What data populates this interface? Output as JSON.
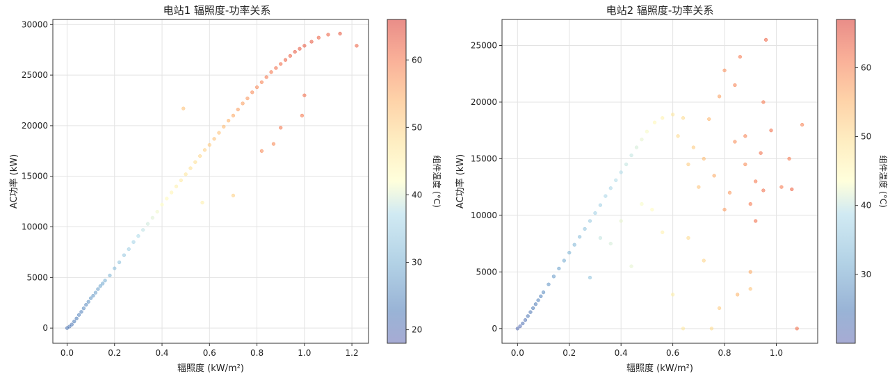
{
  "chart_data": [
    {
      "type": "scatter",
      "title": "电站1 辐照度-功率关系",
      "xlabel": "辐照度 (kW/m²)",
      "ylabel": "AC功率 (kW)",
      "xlim": [
        -0.06,
        1.27
      ],
      "ylim": [
        -1500,
        30500
      ],
      "xticks": [
        0.0,
        0.2,
        0.4,
        0.6,
        0.8,
        1.0,
        1.2
      ],
      "xtick_labels": [
        "0.0",
        "0.2",
        "0.4",
        "0.6",
        "0.8",
        "1.0",
        "1.2"
      ],
      "yticks": [
        0,
        5000,
        10000,
        15000,
        20000,
        25000,
        30000
      ],
      "ytick_labels": [
        "0",
        "5000",
        "10000",
        "15000",
        "20000",
        "25000",
        "30000"
      ],
      "grid": true,
      "colorbar": {
        "label": "组件温度 (°C)",
        "range": [
          18,
          66
        ],
        "ticks": [
          20,
          30,
          40,
          50,
          60
        ],
        "tick_labels": [
          "20",
          "30",
          "40",
          "50",
          "60"
        ],
        "colormap": "RdYlBu_r"
      },
      "points": [
        {
          "x": 0.0,
          "y": 0,
          "t": 22
        },
        {
          "x": 0.01,
          "y": 150,
          "t": 22
        },
        {
          "x": 0.02,
          "y": 350,
          "t": 22
        },
        {
          "x": 0.03,
          "y": 650,
          "t": 23
        },
        {
          "x": 0.04,
          "y": 950,
          "t": 23
        },
        {
          "x": 0.05,
          "y": 1300,
          "t": 24
        },
        {
          "x": 0.06,
          "y": 1600,
          "t": 24
        },
        {
          "x": 0.07,
          "y": 1950,
          "t": 25
        },
        {
          "x": 0.08,
          "y": 2300,
          "t": 25
        },
        {
          "x": 0.09,
          "y": 2600,
          "t": 26
        },
        {
          "x": 0.1,
          "y": 2950,
          "t": 27
        },
        {
          "x": 0.11,
          "y": 3200,
          "t": 27
        },
        {
          "x": 0.12,
          "y": 3500,
          "t": 28
        },
        {
          "x": 0.13,
          "y": 3850,
          "t": 28
        },
        {
          "x": 0.14,
          "y": 4150,
          "t": 29
        },
        {
          "x": 0.15,
          "y": 4400,
          "t": 29
        },
        {
          "x": 0.16,
          "y": 4700,
          "t": 30
        },
        {
          "x": 0.18,
          "y": 5200,
          "t": 31
        },
        {
          "x": 0.2,
          "y": 5900,
          "t": 32
        },
        {
          "x": 0.22,
          "y": 6500,
          "t": 33
        },
        {
          "x": 0.24,
          "y": 7200,
          "t": 34
        },
        {
          "x": 0.26,
          "y": 7800,
          "t": 35
        },
        {
          "x": 0.28,
          "y": 8500,
          "t": 36
        },
        {
          "x": 0.3,
          "y": 9100,
          "t": 37
        },
        {
          "x": 0.32,
          "y": 9700,
          "t": 38
        },
        {
          "x": 0.34,
          "y": 10300,
          "t": 39
        },
        {
          "x": 0.36,
          "y": 10900,
          "t": 40
        },
        {
          "x": 0.38,
          "y": 11500,
          "t": 41
        },
        {
          "x": 0.4,
          "y": 12200,
          "t": 42
        },
        {
          "x": 0.42,
          "y": 12800,
          "t": 43
        },
        {
          "x": 0.44,
          "y": 13400,
          "t": 44
        },
        {
          "x": 0.46,
          "y": 14000,
          "t": 45
        },
        {
          "x": 0.48,
          "y": 14600,
          "t": 46
        },
        {
          "x": 0.5,
          "y": 15200,
          "t": 47
        },
        {
          "x": 0.52,
          "y": 15800,
          "t": 48
        },
        {
          "x": 0.54,
          "y": 16400,
          "t": 48
        },
        {
          "x": 0.56,
          "y": 17000,
          "t": 49
        },
        {
          "x": 0.58,
          "y": 17600,
          "t": 50
        },
        {
          "x": 0.6,
          "y": 18100,
          "t": 51
        },
        {
          "x": 0.62,
          "y": 18700,
          "t": 52
        },
        {
          "x": 0.64,
          "y": 19300,
          "t": 52
        },
        {
          "x": 0.66,
          "y": 19900,
          "t": 53
        },
        {
          "x": 0.68,
          "y": 20500,
          "t": 54
        },
        {
          "x": 0.7,
          "y": 21000,
          "t": 55
        },
        {
          "x": 0.72,
          "y": 21600,
          "t": 56
        },
        {
          "x": 0.74,
          "y": 22200,
          "t": 56
        },
        {
          "x": 0.76,
          "y": 22700,
          "t": 57
        },
        {
          "x": 0.78,
          "y": 23300,
          "t": 58
        },
        {
          "x": 0.8,
          "y": 23800,
          "t": 58
        },
        {
          "x": 0.82,
          "y": 24300,
          "t": 59
        },
        {
          "x": 0.84,
          "y": 24800,
          "t": 60
        },
        {
          "x": 0.86,
          "y": 25300,
          "t": 60
        },
        {
          "x": 0.88,
          "y": 25700,
          "t": 61
        },
        {
          "x": 0.9,
          "y": 26100,
          "t": 61
        },
        {
          "x": 0.92,
          "y": 26500,
          "t": 62
        },
        {
          "x": 0.94,
          "y": 26900,
          "t": 62
        },
        {
          "x": 0.96,
          "y": 27300,
          "t": 63
        },
        {
          "x": 0.98,
          "y": 27600,
          "t": 63
        },
        {
          "x": 1.0,
          "y": 27900,
          "t": 63
        },
        {
          "x": 1.03,
          "y": 28300,
          "t": 63
        },
        {
          "x": 1.06,
          "y": 28700,
          "t": 62
        },
        {
          "x": 1.1,
          "y": 29000,
          "t": 62
        },
        {
          "x": 1.15,
          "y": 29100,
          "t": 63
        },
        {
          "x": 1.22,
          "y": 27900,
          "t": 62
        },
        {
          "x": 0.49,
          "y": 21700,
          "t": 52
        },
        {
          "x": 0.57,
          "y": 12400,
          "t": 45
        },
        {
          "x": 0.7,
          "y": 13100,
          "t": 50
        },
        {
          "x": 0.82,
          "y": 17500,
          "t": 58
        },
        {
          "x": 0.9,
          "y": 19800,
          "t": 60
        },
        {
          "x": 1.0,
          "y": 23000,
          "t": 61
        },
        {
          "x": 0.99,
          "y": 21000,
          "t": 60
        },
        {
          "x": 0.87,
          "y": 18200,
          "t": 58
        }
      ]
    },
    {
      "type": "scatter",
      "title": "电站2 辐照度-功率关系",
      "xlabel": "辐照度 (kW/m²)",
      "ylabel": "AC功率 (kW)",
      "xlim": [
        -0.06,
        1.16
      ],
      "ylim": [
        -1300,
        27300
      ],
      "xticks": [
        0.0,
        0.2,
        0.4,
        0.6,
        0.8,
        1.0
      ],
      "xtick_labels": [
        "0.0",
        "0.2",
        "0.4",
        "0.6",
        "0.8",
        "1.0"
      ],
      "yticks": [
        0,
        5000,
        10000,
        15000,
        20000,
        25000
      ],
      "ytick_labels": [
        "0",
        "5000",
        "10000",
        "15000",
        "20000",
        "25000"
      ],
      "grid": true,
      "colorbar": {
        "label": "组件温度 (°C)",
        "range": [
          20,
          67
        ],
        "ticks": [
          30,
          40,
          50,
          60
        ],
        "tick_labels": [
          "30",
          "40",
          "50",
          "60"
        ],
        "colormap": "RdYlBu_r"
      },
      "points": [
        {
          "x": 0.0,
          "y": 0,
          "t": 22
        },
        {
          "x": 0.01,
          "y": 200,
          "t": 22
        },
        {
          "x": 0.02,
          "y": 450,
          "t": 23
        },
        {
          "x": 0.03,
          "y": 750,
          "t": 23
        },
        {
          "x": 0.04,
          "y": 1100,
          "t": 24
        },
        {
          "x": 0.05,
          "y": 1450,
          "t": 24
        },
        {
          "x": 0.06,
          "y": 1800,
          "t": 25
        },
        {
          "x": 0.07,
          "y": 2150,
          "t": 25
        },
        {
          "x": 0.08,
          "y": 2500,
          "t": 26
        },
        {
          "x": 0.09,
          "y": 2850,
          "t": 26
        },
        {
          "x": 0.1,
          "y": 3200,
          "t": 27
        },
        {
          "x": 0.12,
          "y": 3900,
          "t": 28
        },
        {
          "x": 0.14,
          "y": 4600,
          "t": 29
        },
        {
          "x": 0.16,
          "y": 5300,
          "t": 30
        },
        {
          "x": 0.18,
          "y": 6000,
          "t": 31
        },
        {
          "x": 0.2,
          "y": 6700,
          "t": 32
        },
        {
          "x": 0.22,
          "y": 7400,
          "t": 33
        },
        {
          "x": 0.24,
          "y": 8100,
          "t": 34
        },
        {
          "x": 0.26,
          "y": 8800,
          "t": 35
        },
        {
          "x": 0.28,
          "y": 9500,
          "t": 36
        },
        {
          "x": 0.3,
          "y": 10200,
          "t": 37
        },
        {
          "x": 0.32,
          "y": 10900,
          "t": 37
        },
        {
          "x": 0.34,
          "y": 11700,
          "t": 38
        },
        {
          "x": 0.36,
          "y": 12400,
          "t": 38
        },
        {
          "x": 0.38,
          "y": 13100,
          "t": 39
        },
        {
          "x": 0.4,
          "y": 13800,
          "t": 39
        },
        {
          "x": 0.42,
          "y": 14500,
          "t": 40
        },
        {
          "x": 0.44,
          "y": 15300,
          "t": 40
        },
        {
          "x": 0.46,
          "y": 16000,
          "t": 41
        },
        {
          "x": 0.48,
          "y": 16700,
          "t": 42
        },
        {
          "x": 0.5,
          "y": 17400,
          "t": 43
        },
        {
          "x": 0.53,
          "y": 18200,
          "t": 45
        },
        {
          "x": 0.56,
          "y": 18600,
          "t": 46
        },
        {
          "x": 0.6,
          "y": 18900,
          "t": 48
        },
        {
          "x": 0.62,
          "y": 17000,
          "t": 50
        },
        {
          "x": 0.64,
          "y": 18600,
          "t": 50
        },
        {
          "x": 0.66,
          "y": 14500,
          "t": 52
        },
        {
          "x": 0.68,
          "y": 16000,
          "t": 52
        },
        {
          "x": 0.7,
          "y": 12500,
          "t": 53
        },
        {
          "x": 0.72,
          "y": 15000,
          "t": 54
        },
        {
          "x": 0.74,
          "y": 18500,
          "t": 55
        },
        {
          "x": 0.76,
          "y": 13500,
          "t": 56
        },
        {
          "x": 0.78,
          "y": 20500,
          "t": 57
        },
        {
          "x": 0.8,
          "y": 22800,
          "t": 59
        },
        {
          "x": 0.82,
          "y": 12000,
          "t": 58
        },
        {
          "x": 0.84,
          "y": 16500,
          "t": 59
        },
        {
          "x": 0.86,
          "y": 24000,
          "t": 61
        },
        {
          "x": 0.88,
          "y": 17000,
          "t": 60
        },
        {
          "x": 0.9,
          "y": 11000,
          "t": 61
        },
        {
          "x": 0.92,
          "y": 9500,
          "t": 62
        },
        {
          "x": 0.94,
          "y": 15500,
          "t": 62
        },
        {
          "x": 0.96,
          "y": 25500,
          "t": 63
        },
        {
          "x": 0.98,
          "y": 17500,
          "t": 62
        },
        {
          "x": 1.02,
          "y": 12500,
          "t": 61
        },
        {
          "x": 1.06,
          "y": 12300,
          "t": 63
        },
        {
          "x": 1.08,
          "y": 0,
          "t": 62
        },
        {
          "x": 1.1,
          "y": 18000,
          "t": 60
        },
        {
          "x": 0.92,
          "y": 13000,
          "t": 61
        },
        {
          "x": 0.88,
          "y": 14500,
          "t": 59
        },
        {
          "x": 0.95,
          "y": 12200,
          "t": 62
        },
        {
          "x": 0.8,
          "y": 10500,
          "t": 58
        },
        {
          "x": 0.85,
          "y": 3000,
          "t": 55
        },
        {
          "x": 0.9,
          "y": 5000,
          "t": 56
        },
        {
          "x": 0.9,
          "y": 3500,
          "t": 53
        },
        {
          "x": 0.78,
          "y": 1800,
          "t": 52
        },
        {
          "x": 0.72,
          "y": 6000,
          "t": 51
        },
        {
          "x": 0.66,
          "y": 8000,
          "t": 50
        },
        {
          "x": 0.6,
          "y": 3000,
          "t": 47
        },
        {
          "x": 0.56,
          "y": 8500,
          "t": 46
        },
        {
          "x": 0.52,
          "y": 10500,
          "t": 44
        },
        {
          "x": 0.48,
          "y": 11000,
          "t": 43
        },
        {
          "x": 0.44,
          "y": 5500,
          "t": 42
        },
        {
          "x": 0.4,
          "y": 9500,
          "t": 42
        },
        {
          "x": 0.36,
          "y": 7500,
          "t": 41
        },
        {
          "x": 0.32,
          "y": 8000,
          "t": 40
        },
        {
          "x": 0.28,
          "y": 4500,
          "t": 35
        },
        {
          "x": 0.75,
          "y": 0,
          "t": 50
        },
        {
          "x": 0.64,
          "y": 0,
          "t": 48
        },
        {
          "x": 0.95,
          "y": 20000,
          "t": 61
        },
        {
          "x": 0.84,
          "y": 21500,
          "t": 60
        },
        {
          "x": 1.05,
          "y": 15000,
          "t": 61
        }
      ]
    }
  ]
}
